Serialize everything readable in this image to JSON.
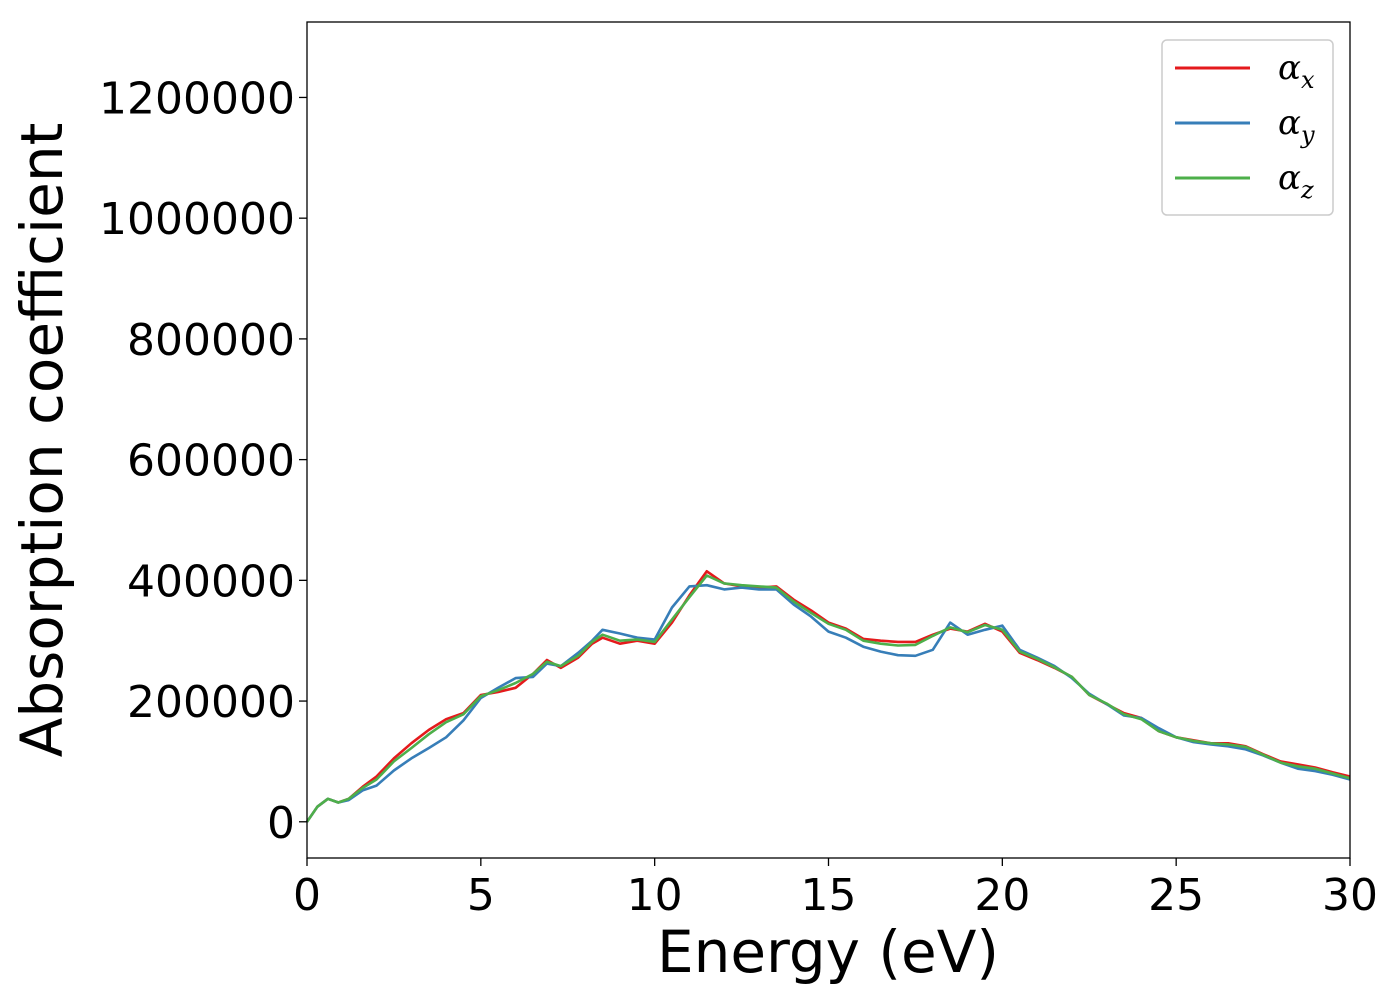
{
  "chart_data": {
    "type": "line",
    "title": "",
    "xlabel": "Energy (eV)",
    "ylabel": "Absorption coefficient",
    "xlim": [
      0,
      30
    ],
    "ylim": [
      -60000,
      1325000
    ],
    "xticks": [
      0,
      5,
      10,
      15,
      20,
      25,
      30
    ],
    "xtick_labels": [
      "0",
      "5",
      "10",
      "15",
      "20",
      "25",
      "30"
    ],
    "yticks": [
      0,
      200000,
      400000,
      600000,
      800000,
      1000000,
      1200000
    ],
    "ytick_labels": [
      "0",
      "200000",
      "400000",
      "600000",
      "800000",
      "1000000",
      "1200000"
    ],
    "grid": false,
    "legend_position": "top-right",
    "series": [
      {
        "name": "α",
        "subscript": "x",
        "color": "#e41a1c",
        "x": [
          0,
          0.3,
          0.6,
          0.9,
          1.2,
          1.6,
          2,
          2.5,
          3,
          3.5,
          4,
          4.5,
          5,
          5.5,
          6,
          6.5,
          6.9,
          7.3,
          7.8,
          8.2,
          8.5,
          9,
          9.5,
          10,
          10.5,
          11,
          11.5,
          12,
          12.5,
          13,
          13.5,
          14,
          14.5,
          15,
          15.5,
          16,
          16.5,
          17,
          17.5,
          18,
          18.5,
          19,
          19.5,
          20,
          20.5,
          21,
          21.5,
          22,
          22.5,
          23,
          23.5,
          24,
          24.5,
          25,
          25.5,
          26,
          26.5,
          27,
          27.5,
          28,
          28.5,
          29,
          29.5,
          30
        ],
        "values": [
          0,
          25000,
          38000,
          32000,
          38000,
          58000,
          75000,
          105000,
          130000,
          152000,
          170000,
          180000,
          210000,
          215000,
          222000,
          245000,
          268000,
          255000,
          272000,
          295000,
          305000,
          295000,
          300000,
          295000,
          330000,
          375000,
          415000,
          395000,
          390000,
          388000,
          390000,
          368000,
          350000,
          330000,
          320000,
          303000,
          300000,
          298000,
          298000,
          310000,
          320000,
          315000,
          328000,
          315000,
          280000,
          268000,
          255000,
          240000,
          210000,
          195000,
          180000,
          172000,
          150000,
          140000,
          135000,
          130000,
          130000,
          125000,
          112000,
          100000,
          95000,
          90000,
          82000,
          75000
        ]
      },
      {
        "name": "α",
        "subscript": "y",
        "color": "#377eb8",
        "x": [
          0,
          0.3,
          0.6,
          0.9,
          1.2,
          1.6,
          2,
          2.5,
          3,
          3.5,
          4,
          4.5,
          5,
          5.5,
          6,
          6.5,
          6.9,
          7.3,
          7.8,
          8.2,
          8.5,
          9,
          9.5,
          10,
          10.5,
          11,
          11.5,
          12,
          12.5,
          13,
          13.5,
          14,
          14.5,
          15,
          15.5,
          16,
          16.5,
          17,
          17.5,
          18,
          18.5,
          19,
          19.5,
          20,
          20.5,
          21,
          21.5,
          22,
          22.5,
          23,
          23.5,
          24,
          24.5,
          25,
          25.5,
          26,
          26.5,
          27,
          27.5,
          28,
          28.5,
          29,
          29.5,
          30
        ],
        "values": [
          0,
          25000,
          38000,
          32000,
          36000,
          52000,
          60000,
          85000,
          105000,
          122000,
          140000,
          168000,
          205000,
          222000,
          238000,
          240000,
          262000,
          258000,
          280000,
          300000,
          318000,
          312000,
          305000,
          302000,
          355000,
          390000,
          392000,
          385000,
          388000,
          385000,
          385000,
          360000,
          340000,
          315000,
          305000,
          290000,
          282000,
          276000,
          275000,
          285000,
          330000,
          310000,
          318000,
          325000,
          285000,
          272000,
          258000,
          238000,
          212000,
          195000,
          176000,
          172000,
          155000,
          140000,
          132000,
          128000,
          125000,
          120000,
          110000,
          98000,
          88000,
          84000,
          78000,
          70000
        ]
      },
      {
        "name": "α",
        "subscript": "z",
        "color": "#4daf4a",
        "x": [
          0,
          0.3,
          0.6,
          0.9,
          1.2,
          1.6,
          2,
          2.5,
          3,
          3.5,
          4,
          4.5,
          5,
          5.5,
          6,
          6.5,
          6.9,
          7.3,
          7.8,
          8.2,
          8.5,
          9,
          9.5,
          10,
          10.5,
          11,
          11.5,
          12,
          12.5,
          13,
          13.5,
          14,
          14.5,
          15,
          15.5,
          16,
          16.5,
          17,
          17.5,
          18,
          18.5,
          19,
          19.5,
          20,
          20.5,
          21,
          21.5,
          22,
          22.5,
          23,
          23.5,
          24,
          24.5,
          25,
          25.5,
          26,
          26.5,
          27,
          27.5,
          28,
          28.5,
          29,
          29.5,
          30
        ],
        "values": [
          0,
          25000,
          38000,
          32000,
          38000,
          56000,
          70000,
          100000,
          122000,
          145000,
          165000,
          178000,
          208000,
          218000,
          230000,
          245000,
          265000,
          258000,
          275000,
          298000,
          310000,
          300000,
          302000,
          298000,
          335000,
          372000,
          408000,
          395000,
          392000,
          390000,
          388000,
          365000,
          346000,
          328000,
          318000,
          300000,
          295000,
          292000,
          293000,
          308000,
          322000,
          314000,
          326000,
          318000,
          282000,
          270000,
          256000,
          240000,
          210000,
          196000,
          178000,
          170000,
          150000,
          140000,
          134000,
          130000,
          128000,
          124000,
          111000,
          98000,
          92000,
          88000,
          80000,
          72000
        ]
      }
    ]
  }
}
